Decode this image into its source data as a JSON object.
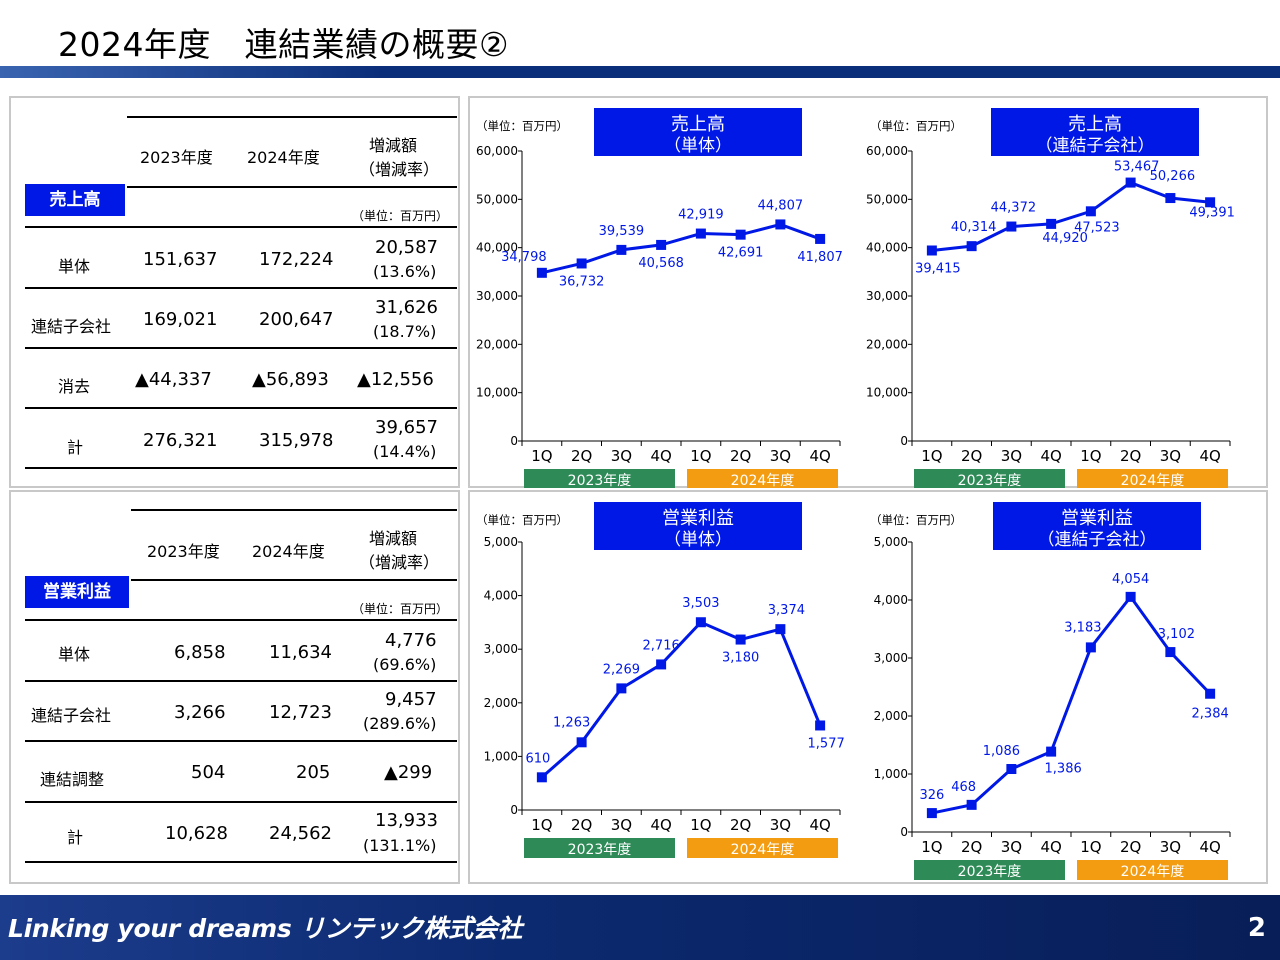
{
  "title": "2024年度　連結業績の概要②",
  "footer": {
    "brand": "Linking your dreams リンテック株式会社",
    "page": "2"
  },
  "tables": [
    {
      "label": "売上高",
      "headers": [
        "2023年度",
        "2024年度",
        "増減額",
        "（増減率）"
      ],
      "unit": "（単位：百万円）",
      "rows": [
        {
          "name": "単体",
          "y2023": "151,637",
          "y2024": "172,224",
          "diff": "20,587",
          "rate": "(13.6%)"
        },
        {
          "name": "連結子会社",
          "y2023": "169,021",
          "y2024": "200,647",
          "diff": "31,626",
          "rate": "(18.7%)"
        },
        {
          "name": "消去",
          "y2023": "▲44,337",
          "y2024": "▲56,893",
          "diff": "▲12,556",
          "rate": ""
        },
        {
          "name": "計",
          "y2023": "276,321",
          "y2024": "315,978",
          "diff": "39,657",
          "rate": "(14.4%)"
        }
      ]
    },
    {
      "label": "営業利益",
      "headers": [
        "2023年度",
        "2024年度",
        "増減額",
        "（増減率）"
      ],
      "unit": "（単位：百万円）",
      "rows": [
        {
          "name": "単体",
          "y2023": "6,858",
          "y2024": "11,634",
          "diff": "4,776",
          "rate": "(69.6%)"
        },
        {
          "name": "連結子会社",
          "y2023": "3,266",
          "y2024": "12,723",
          "diff": "9,457",
          "rate": "(289.6%)"
        },
        {
          "name": "連結調整",
          "y2023": "504",
          "y2024": "205",
          "diff": "▲299",
          "rate": ""
        },
        {
          "name": "計",
          "y2023": "10,628",
          "y2024": "24,562",
          "diff": "13,933",
          "rate": "(131.1%)"
        }
      ]
    }
  ],
  "colors": {
    "series": "#0018e6",
    "fy2023": "#2e8b57",
    "fy2024": "#f39c12",
    "label_bg": "#0018e6"
  },
  "chart_data": [
    {
      "type": "line",
      "title": "売上高",
      "subtitle": "（単体）",
      "unit": "（単位：百万円）",
      "categories": [
        "1Q",
        "2Q",
        "3Q",
        "4Q",
        "1Q",
        "2Q",
        "3Q",
        "4Q"
      ],
      "groups": [
        "2023年度",
        "2024年度"
      ],
      "ylim": [
        0,
        60000
      ],
      "yticks": [
        0,
        10000,
        20000,
        30000,
        40000,
        50000,
        60000
      ],
      "ytick_labels": [
        "0",
        "10,000",
        "20,000",
        "30,000",
        "40,000",
        "50,000",
        "60,000"
      ],
      "values": [
        34798,
        36732,
        39539,
        40568,
        42919,
        42691,
        44807,
        41807
      ],
      "labels": [
        "34,798",
        "36,732",
        "39,539",
        "40,568",
        "42,919",
        "42,691",
        "44,807",
        "41,807"
      ]
    },
    {
      "type": "line",
      "title": "売上高",
      "subtitle": "（連結子会社）",
      "unit": "（単位：百万円）",
      "categories": [
        "1Q",
        "2Q",
        "3Q",
        "4Q",
        "1Q",
        "2Q",
        "3Q",
        "4Q"
      ],
      "groups": [
        "2023年度",
        "2024年度"
      ],
      "ylim": [
        0,
        60000
      ],
      "yticks": [
        0,
        10000,
        20000,
        30000,
        40000,
        50000,
        60000
      ],
      "ytick_labels": [
        "0",
        "10,000",
        "20,000",
        "30,000",
        "40,000",
        "50,000",
        "60,000"
      ],
      "values": [
        39415,
        40314,
        44372,
        44920,
        47523,
        53467,
        50266,
        49391
      ],
      "labels": [
        "39,415",
        "40,314",
        "44,372",
        "44,920",
        "47,523",
        "53,467",
        "50,266",
        "49,391"
      ]
    },
    {
      "type": "line",
      "title": "営業利益",
      "subtitle": "（単体）",
      "unit": "（単位：百万円）",
      "categories": [
        "1Q",
        "2Q",
        "3Q",
        "4Q",
        "1Q",
        "2Q",
        "3Q",
        "4Q"
      ],
      "groups": [
        "2023年度",
        "2024年度"
      ],
      "ylim": [
        0,
        5000
      ],
      "yticks": [
        0,
        1000,
        2000,
        3000,
        4000,
        5000
      ],
      "ytick_labels": [
        "0",
        "1,000",
        "2,000",
        "3,000",
        "4,000",
        "5,000"
      ],
      "values": [
        610,
        1263,
        2269,
        2716,
        3503,
        3180,
        3374,
        1577
      ],
      "labels": [
        "610",
        "1,263",
        "2,269",
        "2,716",
        "3,503",
        "3,180",
        "3,374",
        "1,577"
      ]
    },
    {
      "type": "line",
      "title": "営業利益",
      "subtitle": "（連結子会社）",
      "unit": "（単位：百万円）",
      "categories": [
        "1Q",
        "2Q",
        "3Q",
        "4Q",
        "1Q",
        "2Q",
        "3Q",
        "4Q"
      ],
      "groups": [
        "2023年度",
        "2024年度"
      ],
      "ylim": [
        0,
        5000
      ],
      "yticks": [
        0,
        1000,
        2000,
        3000,
        4000,
        5000
      ],
      "ytick_labels": [
        "0",
        "1,000",
        "2,000",
        "3,000",
        "4,000",
        "5,000"
      ],
      "values": [
        326,
        468,
        1086,
        1386,
        3183,
        4054,
        3102,
        2384
      ],
      "labels": [
        "326",
        "468",
        "1,086",
        "1,386",
        "3,183",
        "4,054",
        "3,102",
        "2,384"
      ]
    }
  ]
}
